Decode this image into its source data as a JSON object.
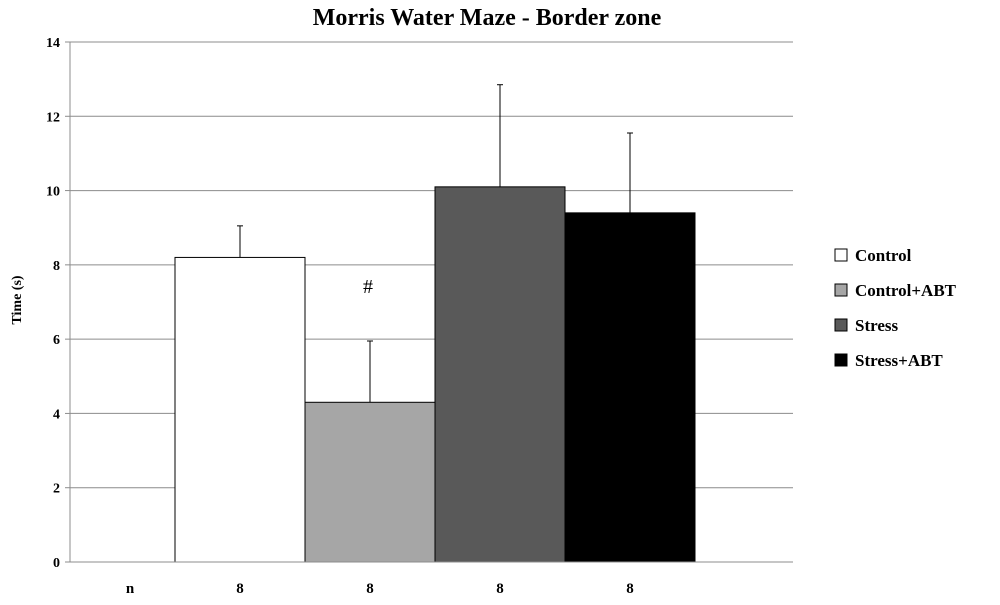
{
  "chart_data": {
    "type": "bar",
    "title": "Morris Water Maze - Border zone",
    "xlabel": "",
    "ylabel": "Time (s)",
    "ylim": [
      0,
      14
    ],
    "yticks": [
      0,
      2,
      4,
      6,
      8,
      10,
      12,
      14
    ],
    "grid": true,
    "legend_position": "right",
    "series": [
      {
        "name": "Control",
        "value": 8.2,
        "error": 0.85,
        "color": "#ffffff",
        "n": "8"
      },
      {
        "name": "Control+ABT",
        "value": 4.3,
        "error": 1.65,
        "color": "#a6a6a6",
        "n": "8"
      },
      {
        "name": "Stress",
        "value": 10.1,
        "error": 2.75,
        "color": "#595959",
        "n": "8"
      },
      {
        "name": "Stress+ABT",
        "value": 9.4,
        "error": 2.15,
        "color": "#000000",
        "n": "8"
      }
    ],
    "n_row_label": "n",
    "annotations": [
      {
        "text": "#",
        "series": "Control+ABT"
      }
    ]
  }
}
